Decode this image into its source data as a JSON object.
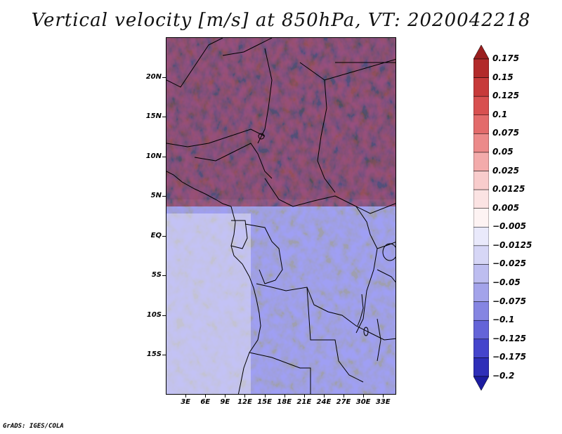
{
  "title": "Vertical velocity [m/s] at 850hPa, VT: 2020042218",
  "credit": "GrADS: IGES/COLA",
  "map": {
    "lat_labels": [
      "20N",
      "15N",
      "10N",
      "5N",
      "EQ",
      "5S",
      "10S",
      "15S"
    ],
    "lon_labels": [
      "3E",
      "6E",
      "9E",
      "12E",
      "15E",
      "18E",
      "21E",
      "24E",
      "27E",
      "30E",
      "33E"
    ],
    "lon_range": [
      0,
      35
    ],
    "lat_range": [
      -20,
      25
    ]
  },
  "colorbar": {
    "labels": [
      "0.175",
      "0.15",
      "0.125",
      "0.1",
      "0.075",
      "0.05",
      "0.025",
      "0.0125",
      "0.005",
      "−0.005",
      "−0.0125",
      "−0.025",
      "−0.05",
      "−0.075",
      "−0.1",
      "−0.125",
      "−0.175",
      "−0.2"
    ],
    "colors": [
      "#9a1f1f",
      "#b22a2a",
      "#c73a3a",
      "#d85050",
      "#e36b6b",
      "#ec8a8a",
      "#f3abab",
      "#f8cccc",
      "#fbe3e3",
      "#fdf3f3",
      "#e9e9fb",
      "#d6d6f6",
      "#bdbdf0",
      "#a3a3ea",
      "#8585e2",
      "#6464d8",
      "#4545cc",
      "#2e2eb8",
      "#1c1ca0"
    ]
  }
}
